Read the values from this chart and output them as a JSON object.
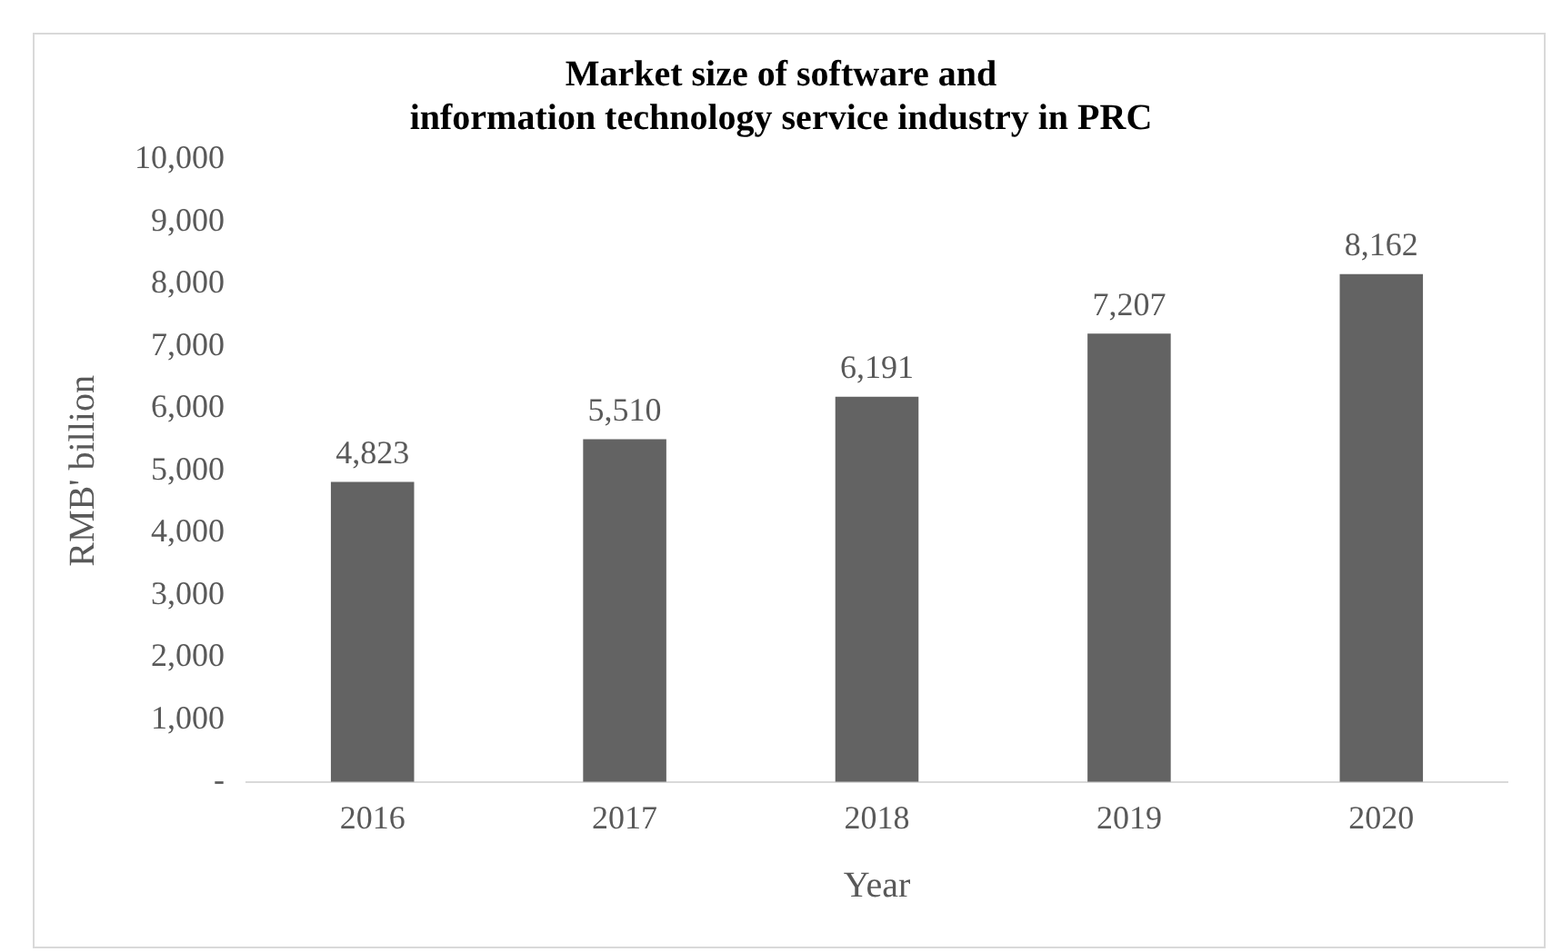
{
  "chart_data": {
    "type": "bar",
    "title": "Market size of software and\ninformation technology service industry in PRC",
    "xlabel": "Year",
    "ylabel": "RMB' billion",
    "categories": [
      "2016",
      "2017",
      "2018",
      "2019",
      "2020"
    ],
    "values": [
      4823,
      5510,
      6191,
      7207,
      8162
    ],
    "value_labels": [
      "4,823",
      "5,510",
      "6,191",
      "7,207",
      "8,162"
    ],
    "color": "#636363",
    "ylim": [
      0,
      10000
    ],
    "yticks": [
      {
        "value": 0,
        "label": "-"
      },
      {
        "value": 1000,
        "label": "1,000"
      },
      {
        "value": 2000,
        "label": "2,000"
      },
      {
        "value": 3000,
        "label": "3,000"
      },
      {
        "value": 4000,
        "label": "4,000"
      },
      {
        "value": 5000,
        "label": "5,000"
      },
      {
        "value": 6000,
        "label": "6,000"
      },
      {
        "value": 7000,
        "label": "7,000"
      },
      {
        "value": 8000,
        "label": "8,000"
      },
      {
        "value": 9000,
        "label": "9,000"
      },
      {
        "value": 10000,
        "label": "10,000"
      }
    ],
    "grid": false,
    "legend": false
  }
}
